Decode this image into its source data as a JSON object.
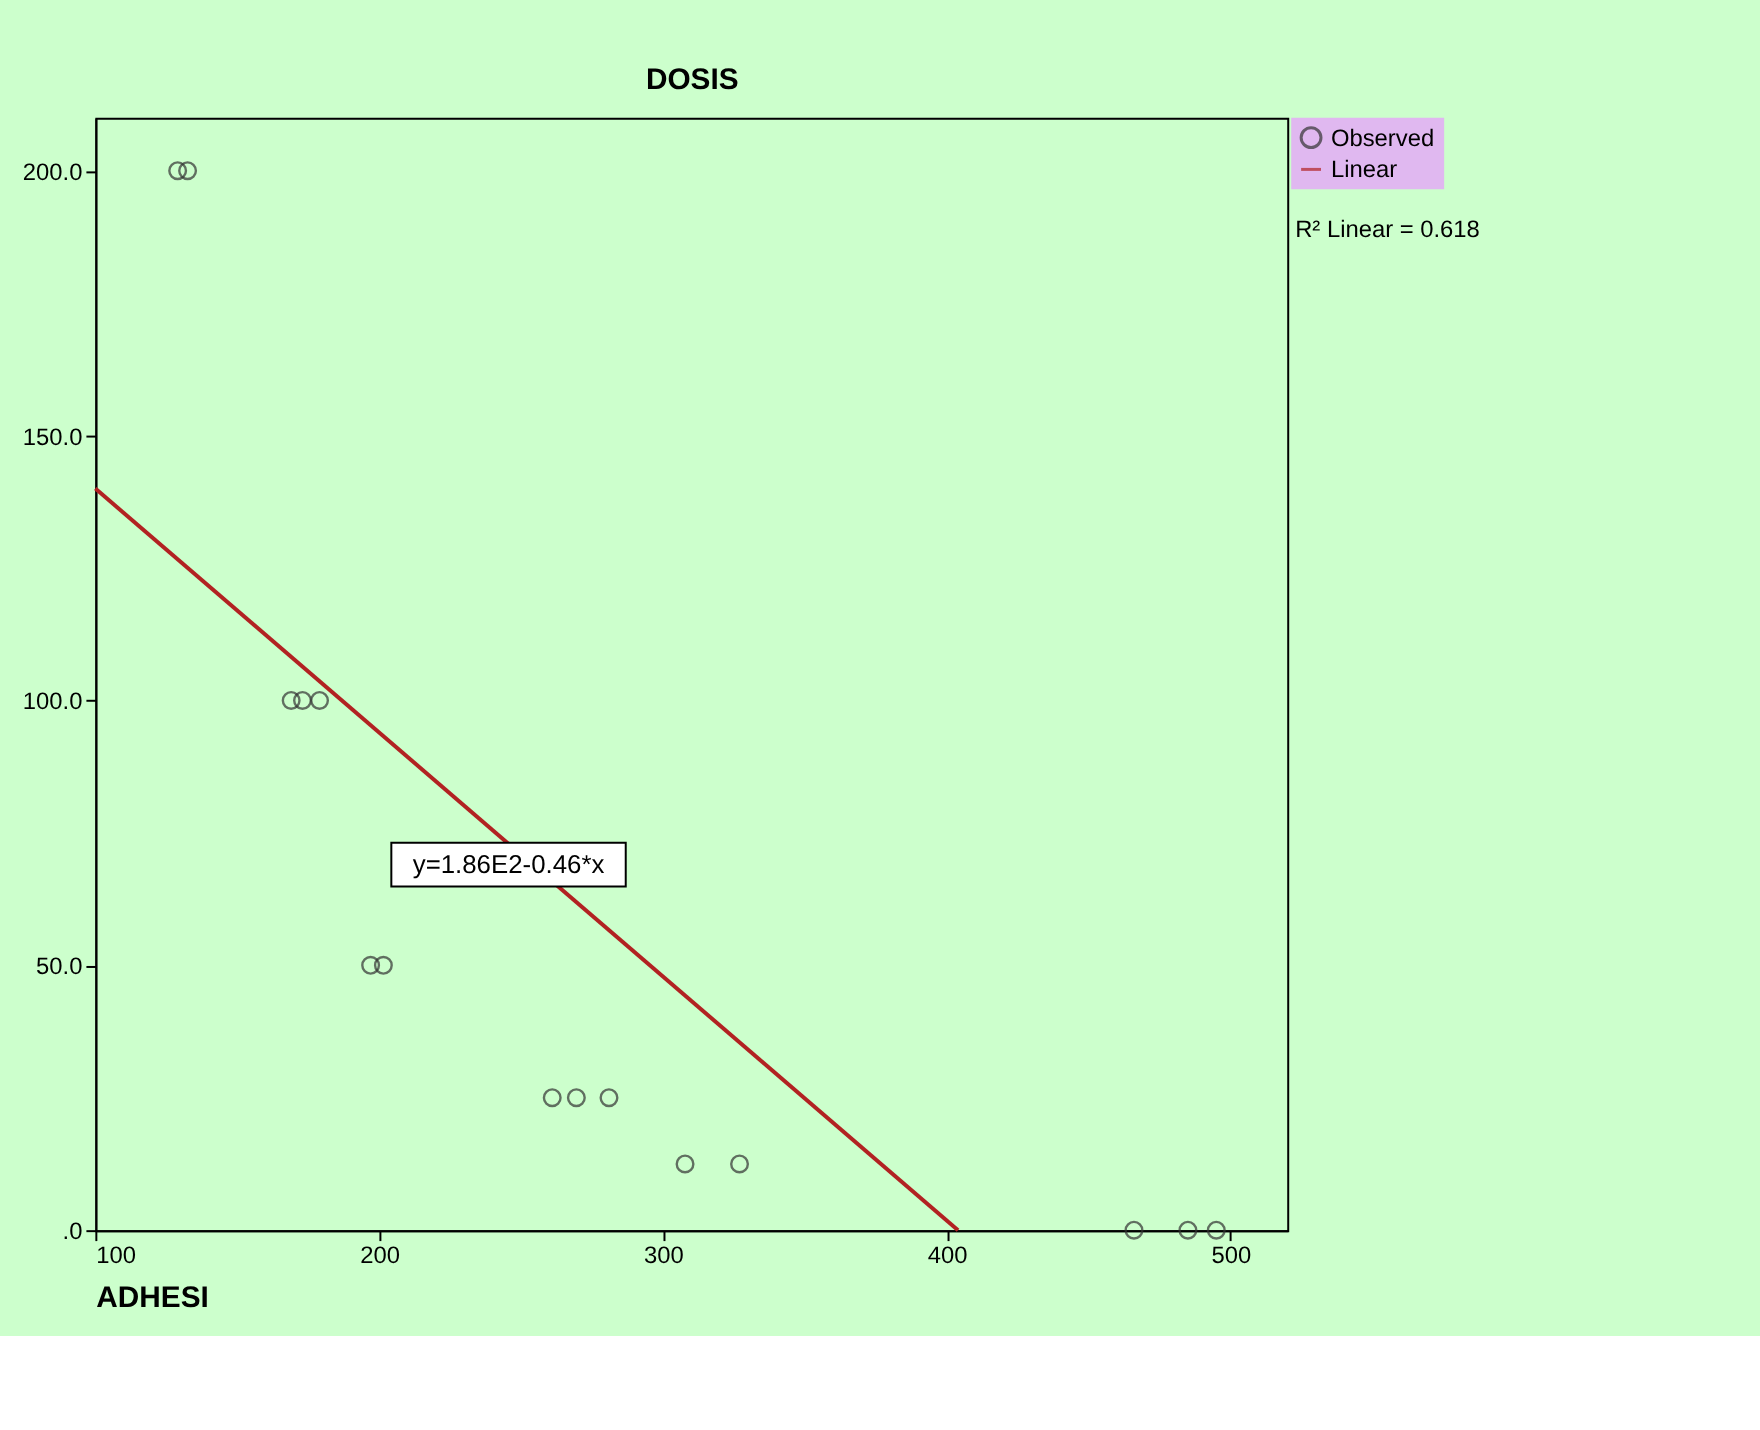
{
  "chart_data": {
    "type": "scatter",
    "xlabel": "ADHESI",
    "ylabel": "DOSIS",
    "xlim": [
      100,
      520
    ],
    "ylim": [
      0,
      210
    ],
    "xticks": [
      100,
      200,
      300,
      400,
      500
    ],
    "yticks": [
      {
        "value": 0,
        "label": ".0"
      },
      {
        "value": 50,
        "label": "50.0"
      },
      {
        "value": 100,
        "label": "100.0"
      },
      {
        "value": 150,
        "label": "150.0"
      },
      {
        "value": 200,
        "label": "200.0"
      }
    ],
    "series": [
      {
        "name": "Observed",
        "color": "#333333",
        "marker": "circle",
        "x": [
          129,
          132.5,
          169,
          173,
          179,
          197,
          201.5,
          261,
          269.5,
          281,
          307.8,
          327,
          466,
          485,
          495
        ],
        "values": [
          200,
          200,
          100,
          100,
          100,
          50,
          50,
          25,
          25,
          25,
          12.5,
          12.5,
          0,
          0,
          0
        ]
      },
      {
        "name": "Linear",
        "type": "line",
        "color": "#b22222",
        "marker": "none",
        "x": [
          100,
          404
        ],
        "values": [
          140,
          0
        ]
      }
    ],
    "annotations": [
      "y=1.86E2-0.46*x",
      "R² Linear = 0.618"
    ],
    "grid": false,
    "legend": "top right"
  }
}
